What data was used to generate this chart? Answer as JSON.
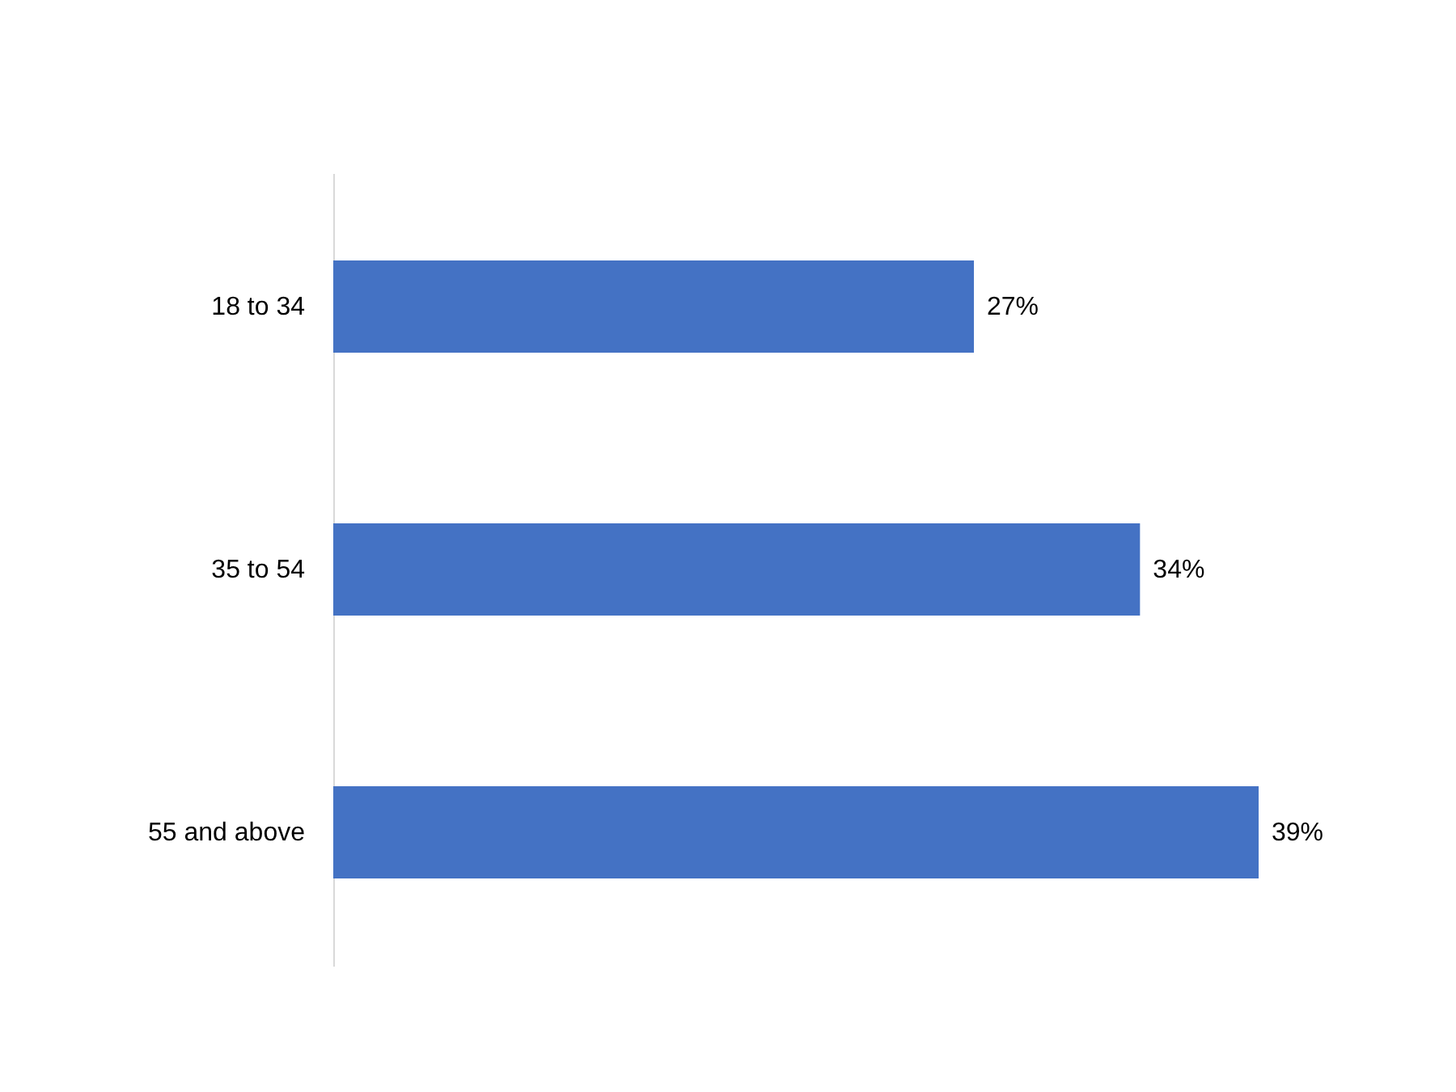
{
  "chart_data": {
    "type": "bar",
    "orientation": "horizontal",
    "categories": [
      "18 to 34",
      "35 to 54",
      "55 and above"
    ],
    "values": [
      27,
      34,
      39
    ],
    "color": "#4472c4",
    "value_labels": [
      "27%",
      "34%",
      "39%"
    ]
  }
}
